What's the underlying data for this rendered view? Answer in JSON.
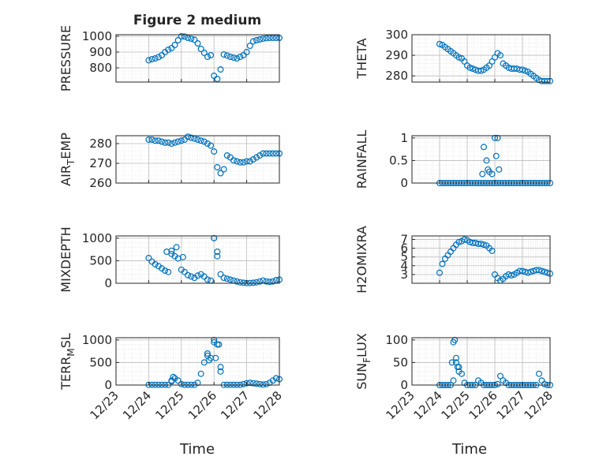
{
  "figure": {
    "title": "Figure 2 medium",
    "xlabel": "Time",
    "marker_color": "#0072BD"
  },
  "chart_data": [
    {
      "type": "scatter",
      "ylabel": "PRESSURE",
      "ylim": [
        710,
        1010
      ],
      "yticks": [
        800,
        900,
        1000
      ],
      "xlim": [
        0,
        5
      ],
      "xticks": [
        0,
        1,
        2,
        3,
        4,
        5
      ],
      "xticklabels": [
        "12/23",
        "12/24",
        "12/25",
        "12/26",
        "12/27",
        "12/28"
      ],
      "grid": true,
      "series": [
        {
          "x": [
            1.0,
            1.1,
            1.2,
            1.3,
            1.4,
            1.5,
            1.6,
            1.7,
            1.8,
            1.9,
            2.0,
            2.1,
            2.2,
            2.3,
            2.4,
            2.5,
            2.6,
            2.7,
            2.8,
            2.9,
            3.0,
            3.1,
            3.2,
            3.3,
            3.4,
            3.5,
            3.6,
            3.7,
            3.8,
            3.9,
            4.0,
            4.1,
            4.2,
            4.3,
            4.4,
            4.5,
            4.6,
            4.7,
            4.8,
            4.9,
            5.0
          ],
          "y": [
            848,
            855,
            860,
            868,
            880,
            900,
            915,
            925,
            945,
            975,
            1000,
            998,
            990,
            985,
            978,
            955,
            920,
            895,
            870,
            880,
            750,
            730,
            790,
            885,
            878,
            870,
            865,
            860,
            870,
            880,
            900,
            940,
            968,
            975,
            980,
            985,
            988,
            990,
            990,
            990,
            990
          ]
        }
      ]
    },
    {
      "type": "scatter",
      "ylabel": "THETA",
      "ylim": [
        277,
        300
      ],
      "yticks": [
        280,
        290,
        300
      ],
      "xlim": [
        0,
        5
      ],
      "xticks": [
        0,
        1,
        2,
        3,
        4,
        5
      ],
      "xticklabels": [
        "12/23",
        "12/24",
        "12/25",
        "12/26",
        "12/27",
        "12/28"
      ],
      "grid": true,
      "series": [
        {
          "x": [
            1.0,
            1.1,
            1.2,
            1.3,
            1.4,
            1.5,
            1.6,
            1.7,
            1.8,
            1.9,
            2.0,
            2.1,
            2.2,
            2.3,
            2.4,
            2.5,
            2.6,
            2.7,
            2.8,
            2.9,
            3.0,
            3.1,
            3.2,
            3.3,
            3.4,
            3.5,
            3.6,
            3.7,
            3.8,
            3.9,
            4.0,
            4.1,
            4.2,
            4.3,
            4.4,
            4.5,
            4.6,
            4.7,
            4.8,
            4.9,
            5.0
          ],
          "y": [
            295.5,
            295,
            294,
            293,
            292,
            291,
            290,
            289,
            288.5,
            287,
            285,
            284,
            283.5,
            283,
            282.5,
            282.5,
            283,
            284,
            285,
            287,
            289,
            291,
            290,
            286,
            285,
            284,
            283.5,
            283.5,
            283.5,
            283,
            283,
            282.5,
            282,
            281,
            280,
            279,
            278,
            277.5,
            277.5,
            277.5,
            277.5
          ]
        }
      ]
    },
    {
      "type": "scatter",
      "ylabel": "AIR_TEMP",
      "ylim": [
        260,
        284
      ],
      "yticks": [
        260,
        270,
        280
      ],
      "xlim": [
        0,
        5
      ],
      "xticks": [
        0,
        1,
        2,
        3,
        4,
        5
      ],
      "xticklabels": [
        "12/23",
        "12/24",
        "12/25",
        "12/26",
        "12/27",
        "12/28"
      ],
      "grid": true,
      "series": [
        {
          "x": [
            1.0,
            1.1,
            1.2,
            1.3,
            1.4,
            1.5,
            1.6,
            1.7,
            1.8,
            1.9,
            2.0,
            2.1,
            2.2,
            2.3,
            2.4,
            2.5,
            2.6,
            2.7,
            2.8,
            2.9,
            3.0,
            3.1,
            3.2,
            3.3,
            3.4,
            3.5,
            3.6,
            3.7,
            3.8,
            3.9,
            4.0,
            4.1,
            4.2,
            4.3,
            4.4,
            4.5,
            4.6,
            4.7,
            4.8,
            4.9,
            5.0
          ],
          "y": [
            282,
            282,
            281.5,
            281.5,
            281,
            280.5,
            280.5,
            280,
            280.5,
            281,
            281.5,
            282,
            283.5,
            283,
            282.5,
            282,
            281.5,
            281,
            280,
            279,
            276,
            268,
            265,
            267,
            274,
            273,
            271.5,
            271,
            270.5,
            270.5,
            271,
            271,
            272,
            273,
            274,
            275,
            275,
            275,
            275,
            275,
            275
          ]
        }
      ]
    },
    {
      "type": "scatter",
      "ylabel": "RAINFALL",
      "ylim": [
        0,
        1.05
      ],
      "yticks": [
        0,
        0.5,
        1
      ],
      "xlim": [
        0,
        5
      ],
      "xticks": [
        0,
        1,
        2,
        3,
        4,
        5
      ],
      "xticklabels": [
        "12/23",
        "12/24",
        "12/25",
        "12/26",
        "12/27",
        "12/28"
      ],
      "grid": true,
      "series": [
        {
          "x": [
            1.0,
            1.1,
            1.2,
            1.3,
            1.4,
            1.5,
            1.6,
            1.7,
            1.8,
            1.9,
            2.0,
            2.1,
            2.2,
            2.3,
            2.4,
            2.5,
            2.6,
            2.7,
            2.8,
            2.9,
            3.0,
            3.1,
            3.2,
            3.3,
            3.4,
            3.5,
            3.6,
            3.7,
            3.8,
            3.9,
            4.0,
            4.1,
            4.2,
            4.3,
            4.4,
            4.5,
            4.6,
            4.7,
            4.8,
            4.9,
            5.0,
            2.55,
            2.6,
            2.7,
            2.75,
            2.8,
            2.9,
            3.0,
            3.05,
            3.1,
            3.15
          ],
          "y": [
            0,
            0,
            0,
            0,
            0,
            0,
            0,
            0,
            0,
            0,
            0,
            0,
            0,
            0,
            0,
            0,
            0,
            0,
            0,
            0,
            0,
            0,
            0,
            0,
            0,
            0,
            0,
            0,
            0,
            0,
            0,
            0,
            0,
            0,
            0,
            0,
            0,
            0,
            0,
            0,
            0,
            0.2,
            0.8,
            0.5,
            0.3,
            0.25,
            0.2,
            1.0,
            0.6,
            1.0,
            0.3
          ]
        }
      ]
    },
    {
      "type": "scatter",
      "ylabel": "MIXDEPTH",
      "ylim": [
        0,
        1050
      ],
      "yticks": [
        0,
        500,
        1000
      ],
      "xlim": [
        0,
        5
      ],
      "xticks": [
        0,
        1,
        2,
        3,
        4,
        5
      ],
      "xticklabels": [
        "12/23",
        "12/24",
        "12/25",
        "12/26",
        "12/27",
        "12/28"
      ],
      "grid": true,
      "series": [
        {
          "x": [
            1.0,
            1.1,
            1.2,
            1.3,
            1.4,
            1.5,
            1.6,
            1.7,
            1.8,
            1.9,
            2.0,
            2.1,
            2.2,
            2.3,
            2.4,
            2.5,
            2.6,
            2.7,
            2.8,
            2.9,
            3.0,
            3.1,
            3.2,
            3.3,
            3.4,
            3.5,
            3.6,
            3.7,
            3.8,
            3.9,
            4.0,
            4.1,
            4.2,
            4.3,
            4.4,
            4.5,
            4.6,
            4.7,
            4.8,
            4.9,
            5.0,
            1.55,
            1.7,
            1.85,
            2.05,
            3.0,
            3.1
          ],
          "y": [
            560,
            480,
            420,
            380,
            330,
            280,
            250,
            720,
            600,
            550,
            300,
            250,
            180,
            150,
            120,
            170,
            200,
            150,
            80,
            60,
            1000,
            600,
            200,
            120,
            100,
            80,
            60,
            40,
            20,
            10,
            5,
            5,
            10,
            20,
            40,
            60,
            40,
            30,
            40,
            70,
            80,
            700,
            650,
            800,
            580,
            1000,
            700
          ]
        }
      ]
    },
    {
      "type": "scatter",
      "ylabel": "H2OMIXRA",
      "ylim": [
        2,
        7.4
      ],
      "yticks": [
        3,
        4,
        5,
        6,
        7
      ],
      "xlim": [
        0,
        5
      ],
      "xticks": [
        0,
        1,
        2,
        3,
        4,
        5
      ],
      "xticklabels": [
        "12/23",
        "12/24",
        "12/25",
        "12/26",
        "12/27",
        "12/28"
      ],
      "grid": true,
      "series": [
        {
          "x": [
            1.0,
            1.1,
            1.2,
            1.3,
            1.4,
            1.5,
            1.6,
            1.7,
            1.8,
            1.9,
            2.0,
            2.1,
            2.2,
            2.3,
            2.4,
            2.5,
            2.6,
            2.7,
            2.8,
            2.9,
            3.0,
            3.1,
            3.2,
            3.3,
            3.4,
            3.5,
            3.6,
            3.7,
            3.8,
            3.9,
            4.0,
            4.1,
            4.2,
            4.3,
            4.4,
            4.5,
            4.6,
            4.7,
            4.8,
            4.9,
            5.0
          ],
          "y": [
            3.2,
            4.2,
            4.8,
            5.2,
            5.6,
            6.0,
            6.4,
            6.7,
            6.8,
            7.0,
            6.9,
            6.7,
            6.6,
            6.6,
            6.5,
            6.5,
            6.4,
            6.3,
            6.0,
            5.7,
            3.0,
            2.6,
            2.3,
            2.5,
            2.8,
            3.0,
            2.9,
            3.0,
            3.2,
            3.4,
            3.4,
            3.3,
            3.2,
            3.3,
            3.4,
            3.5,
            3.5,
            3.4,
            3.3,
            3.2,
            3.1
          ]
        }
      ]
    },
    {
      "type": "scatter",
      "ylabel": "TERR_MSL",
      "ylim": [
        0,
        1050
      ],
      "yticks": [
        0,
        500,
        1000
      ],
      "xlim": [
        0,
        5
      ],
      "xticks": [
        0,
        1,
        2,
        3,
        4,
        5
      ],
      "xticklabels": [
        "12/23",
        "12/24",
        "12/25",
        "12/26",
        "12/27",
        "12/28"
      ],
      "grid": true,
      "series": [
        {
          "x": [
            1.0,
            1.1,
            1.2,
            1.3,
            1.4,
            1.5,
            1.6,
            1.7,
            1.8,
            1.9,
            2.0,
            2.1,
            2.2,
            2.3,
            2.4,
            2.5,
            2.6,
            2.7,
            2.8,
            2.9,
            3.0,
            3.1,
            3.2,
            3.3,
            3.4,
            3.5,
            3.6,
            3.7,
            3.8,
            3.9,
            4.0,
            4.1,
            4.2,
            4.3,
            4.4,
            4.5,
            4.6,
            4.7,
            4.8,
            4.9,
            5.0,
            1.7,
            1.75,
            2.8,
            2.85,
            3.0,
            3.05,
            3.15,
            3.2
          ],
          "y": [
            5,
            5,
            5,
            5,
            5,
            5,
            5,
            80,
            150,
            100,
            20,
            5,
            5,
            5,
            5,
            50,
            250,
            500,
            650,
            600,
            1000,
            900,
            400,
            5,
            5,
            5,
            5,
            5,
            5,
            20,
            40,
            50,
            40,
            30,
            20,
            10,
            20,
            50,
            100,
            150,
            130,
            100,
            180,
            700,
            550,
            950,
            600,
            900,
            300
          ]
        }
      ]
    },
    {
      "type": "scatter",
      "ylabel": "SUN_FLUX",
      "ylim": [
        0,
        105
      ],
      "yticks": [
        0,
        50,
        100
      ],
      "xlim": [
        0,
        5
      ],
      "xticks": [
        0,
        1,
        2,
        3,
        4,
        5
      ],
      "xticklabels": [
        "12/23",
        "12/24",
        "12/25",
        "12/26",
        "12/27",
        "12/28"
      ],
      "grid": true,
      "series": [
        {
          "x": [
            1.0,
            1.1,
            1.2,
            1.3,
            1.4,
            1.5,
            1.6,
            1.7,
            1.8,
            1.9,
            2.0,
            2.1,
            2.2,
            2.3,
            2.4,
            2.5,
            2.6,
            2.7,
            2.8,
            2.9,
            3.0,
            3.1,
            3.2,
            3.3,
            3.4,
            3.5,
            3.6,
            3.7,
            3.8,
            3.9,
            4.0,
            4.1,
            4.2,
            4.3,
            4.4,
            4.5,
            4.6,
            4.7,
            4.8,
            4.9,
            5.0,
            1.45,
            1.5,
            1.55,
            1.6,
            1.65,
            1.7
          ],
          "y": [
            0,
            0,
            0,
            0,
            0,
            10,
            50,
            40,
            25,
            5,
            0,
            0,
            0,
            0,
            10,
            5,
            0,
            0,
            0,
            0,
            0,
            2,
            20,
            10,
            5,
            0,
            0,
            0,
            0,
            0,
            0,
            0,
            0,
            0,
            0,
            0,
            25,
            10,
            2,
            0,
            0,
            50,
            95,
            100,
            60,
            40,
            30
          ]
        }
      ]
    }
  ]
}
